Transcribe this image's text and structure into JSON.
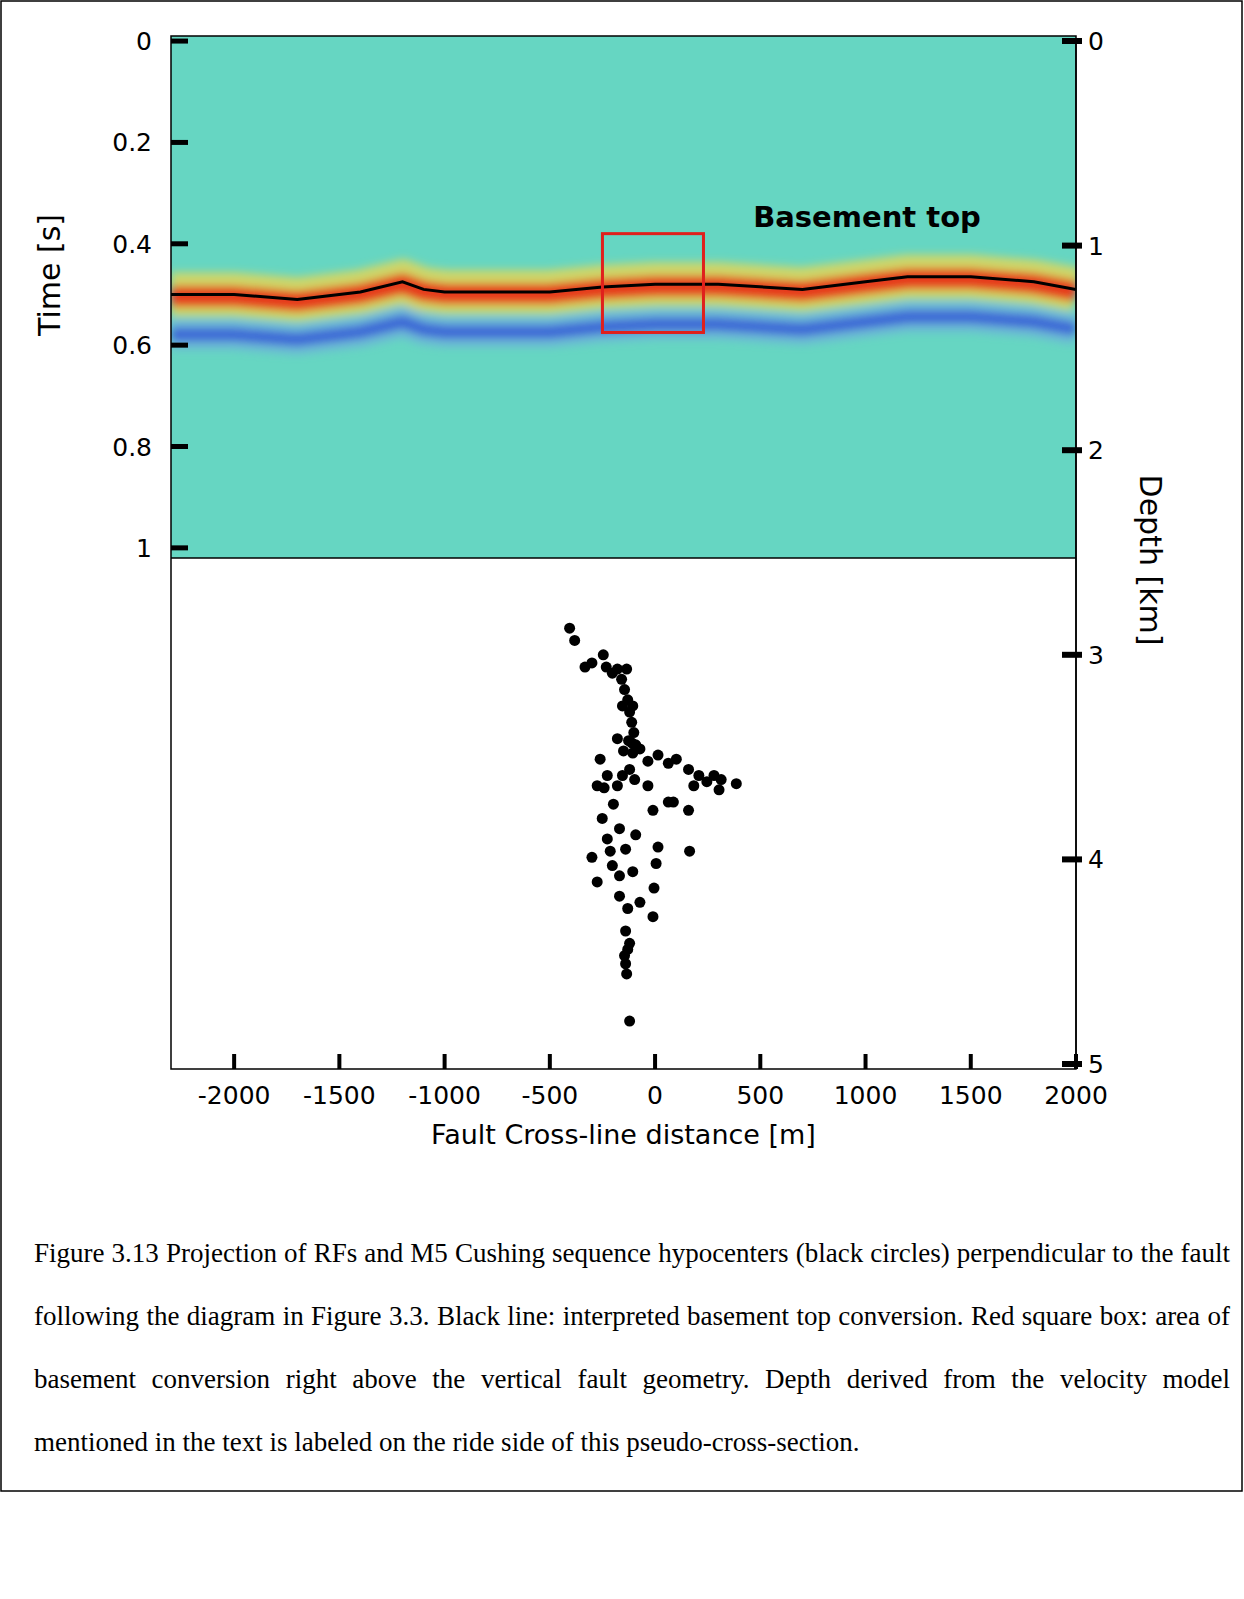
{
  "chart_data": [
    {
      "type": "line",
      "y_label": "Time [s]",
      "xlim": [
        -2300,
        2000
      ],
      "ylim": [
        1.02,
        -0.01
      ],
      "yticks": [
        0,
        0.2,
        0.4,
        0.6,
        0.8,
        1
      ],
      "tick_labels": "y",
      "series": [
        {
          "name": "Basement top",
          "color": "#000000",
          "x": [
            -2300,
            -2000,
            -1700,
            -1400,
            -1200,
            -1100,
            -1000,
            -500,
            -250,
            0,
            300,
            700,
            1000,
            1200,
            1500,
            1800,
            2000
          ],
          "values": [
            0.5,
            0.5,
            0.51,
            0.495,
            0.475,
            0.49,
            0.495,
            0.495,
            0.485,
            0.48,
            0.48,
            0.49,
            0.475,
            0.465,
            0.465,
            0.475,
            0.49
          ]
        }
      ],
      "box": {
        "x": [
          -250,
          230
        ],
        "y": [
          0.38,
          0.575
        ],
        "color": "#e0201c"
      }
    },
    {
      "type": "scatter",
      "x_label": "Fault Cross-line distance [m]",
      "y_label": "Depth [km]",
      "xlim": [
        -2300,
        2000
      ],
      "xticks": [
        -2000,
        -1500,
        -1000,
        -500,
        0,
        500,
        1000,
        1500,
        2000
      ],
      "ylim": [
        5,
        0
      ],
      "yticks": [
        0,
        1,
        2,
        3,
        4,
        5
      ],
      "color": "#000000",
      "marker": "circle",
      "x": [
        -406,
        -382,
        -333,
        -300,
        -246,
        -232,
        -203,
        -179,
        -159,
        -135,
        -145,
        -130,
        -121,
        -111,
        -101,
        -126,
        -92,
        -106,
        -72,
        -150,
        -179,
        -261,
        -227,
        -179,
        -242,
        -121,
        -34,
        14,
        63,
        101,
        159,
        208,
        184,
        246,
        280,
        314,
        304,
        386,
        159,
        87,
        -10,
        63,
        -198,
        -251,
        -169,
        -227,
        -300,
        -275,
        -203,
        -140,
        -106,
        -169,
        -130,
        5,
        14,
        -5,
        -10,
        -72,
        -140,
        -130,
        -140,
        -135,
        -121,
        -111,
        -155,
        -97,
        164,
        -169,
        -92,
        -213,
        -121,
        -145,
        -106,
        -155,
        -275,
        -34
      ],
      "values": [
        2.87,
        2.93,
        3.06,
        3.04,
        3,
        3.06,
        3.09,
        3.07,
        3.12,
        3.07,
        3.17,
        3.22,
        3.28,
        3.33,
        3.38,
        3.42,
        3.44,
        3.48,
        3.46,
        3.47,
        3.41,
        3.51,
        3.59,
        3.64,
        3.65,
        3.56,
        3.52,
        3.49,
        3.53,
        3.51,
        3.56,
        3.59,
        3.64,
        3.62,
        3.59,
        3.61,
        3.66,
        3.63,
        3.76,
        3.72,
        3.76,
        3.72,
        3.73,
        3.8,
        3.85,
        3.9,
        3.99,
        4.11,
        4.03,
        3.95,
        4.06,
        4.18,
        4.24,
        4.02,
        3.94,
        4.14,
        4.28,
        4.21,
        4.35,
        4.44,
        4.51,
        4.56,
        4.79,
        3.43,
        3.59,
        3.61,
        3.96,
        4.08,
        3.88,
        3.96,
        4.41,
        4.47,
        3.25,
        3.25,
        3.64,
        3.64
      ]
    }
  ],
  "caption": "Figure 3.13 Projection of RFs and M5 Cushing sequence hypocenters (black circles) perpendicular to the fault following the diagram in Figure 3.3. Black line: interpreted basement top conversion. Red square box: area of basement conversion right above the vertical fault geometry. Depth derived from the velocity model mentioned in the text is labeled on the ride side of this pseudo-cross-section."
}
